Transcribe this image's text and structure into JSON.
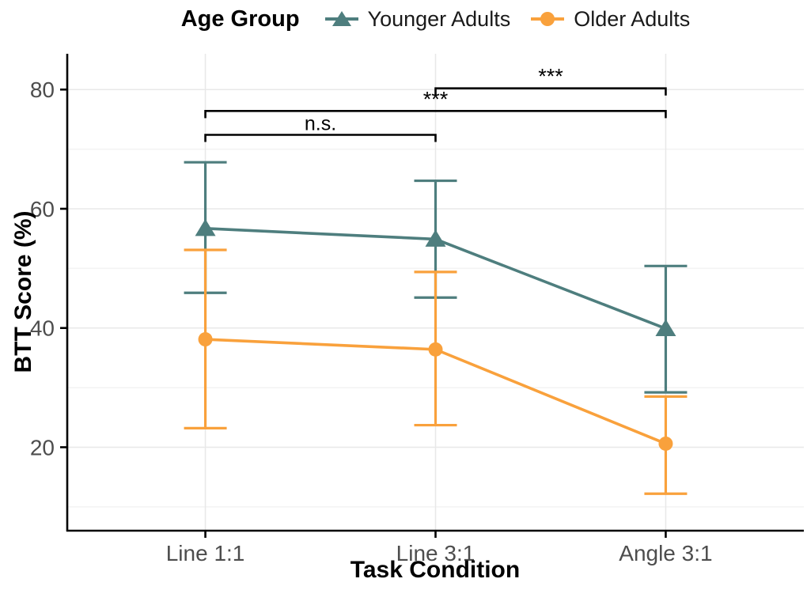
{
  "chart_data": {
    "type": "line",
    "title": "",
    "legend_title": "Age Group",
    "legend_position": "top",
    "xlabel": "Task Condition",
    "ylabel": "BTT Score (%)",
    "categories": [
      "Line 1:1",
      "Line 3:1",
      "Angle 3:1"
    ],
    "series": [
      {
        "name": "Younger Adults",
        "color": "#4E7E7E",
        "marker": "triangle",
        "values": [
          56.7,
          54.9,
          39.9
        ],
        "ci_low": [
          45.9,
          45.1,
          29.2
        ],
        "ci_high": [
          67.8,
          64.7,
          50.4
        ]
      },
      {
        "name": "Older Adults",
        "color": "#F9A13C",
        "marker": "circle",
        "values": [
          38.1,
          36.4,
          20.6
        ],
        "ci_low": [
          23.2,
          23.7,
          12.2
        ],
        "ci_high": [
          53.1,
          49.4,
          28.5
        ]
      }
    ],
    "ylim": [
      6,
      86
    ],
    "yticks": [
      20,
      40,
      60,
      80
    ],
    "yticks_minor": [
      10,
      30,
      50,
      70
    ],
    "grid": "horizontal major+minor, vertical at categories",
    "error_bars": true,
    "significance": [
      {
        "from": "Line 1:1",
        "to": "Line 3:1",
        "label": "n.s.",
        "level": 72.4
      },
      {
        "from": "Line 1:1",
        "to": "Angle 3:1",
        "label": "***",
        "level": 76.4
      },
      {
        "from": "Line 3:1",
        "to": "Angle 3:1",
        "label": "***",
        "level": 80.2
      }
    ],
    "colors": {
      "axis": "#000000",
      "tick_label": "#4D4D4D",
      "grid_major": "#E8E8E8",
      "grid_minor": "#F3F3F3",
      "bracket": "#000000"
    }
  }
}
